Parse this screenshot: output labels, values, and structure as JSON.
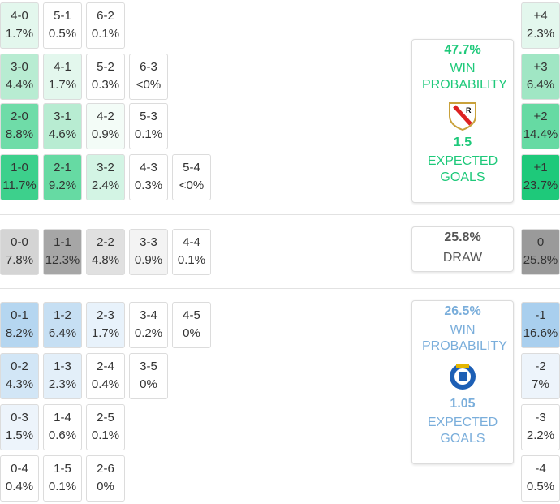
{
  "sections": [
    {
      "rows": [
        [
          {
            "score": "4-0",
            "pct": "1.7%",
            "color": "#e3f7ed"
          },
          {
            "score": "5-1",
            "pct": "0.5%",
            "color": "#ffffff"
          },
          {
            "score": "6-2",
            "pct": "0.1%",
            "color": "#ffffff"
          }
        ],
        [
          {
            "score": "3-0",
            "pct": "4.4%",
            "color": "#b8ecd2"
          },
          {
            "score": "4-1",
            "pct": "1.7%",
            "color": "#e3f7ed"
          },
          {
            "score": "5-2",
            "pct": "0.3%",
            "color": "#ffffff"
          },
          {
            "score": "6-3",
            "pct": "<0%",
            "color": "#ffffff"
          }
        ],
        [
          {
            "score": "2-0",
            "pct": "8.8%",
            "color": "#6fdca8"
          },
          {
            "score": "3-1",
            "pct": "4.6%",
            "color": "#b8ecd2"
          },
          {
            "score": "4-2",
            "pct": "0.9%",
            "color": "#f3fcf7"
          },
          {
            "score": "5-3",
            "pct": "0.1%",
            "color": "#ffffff"
          }
        ],
        [
          {
            "score": "1-0",
            "pct": "11.7%",
            "color": "#3dd08c"
          },
          {
            "score": "2-1",
            "pct": "9.2%",
            "color": "#66daa3"
          },
          {
            "score": "3-2",
            "pct": "2.4%",
            "color": "#d3f4e4"
          },
          {
            "score": "4-3",
            "pct": "0.3%",
            "color": "#ffffff"
          },
          {
            "score": "5-4",
            "pct": "<0%",
            "color": "#ffffff"
          }
        ]
      ],
      "margins": [
        {
          "diff": "+4",
          "pct": "2.3%",
          "color": "#e3f7ed"
        },
        {
          "diff": "+3",
          "pct": "6.4%",
          "color": "#a0e6c4"
        },
        {
          "diff": "+2",
          "pct": "14.4%",
          "color": "#66daa3"
        },
        {
          "diff": "+1",
          "pct": "23.7%",
          "color": "#1ec97a"
        }
      ],
      "summary": {
        "pct": "47.7%",
        "label": "WIN PROBABILITY",
        "xg": "1.5",
        "xg_label": "EXPECTED GOALS",
        "color": "#1ec97a"
      }
    },
    {
      "rows": [
        [
          {
            "score": "0-0",
            "pct": "7.8%",
            "color": "#d4d4d4"
          },
          {
            "score": "1-1",
            "pct": "12.3%",
            "color": "#a6a6a6"
          },
          {
            "score": "2-2",
            "pct": "4.8%",
            "color": "#e0e0e0"
          },
          {
            "score": "3-3",
            "pct": "0.9%",
            "color": "#f3f3f3"
          },
          {
            "score": "4-4",
            "pct": "0.1%",
            "color": "#ffffff"
          }
        ]
      ],
      "margins": [
        {
          "diff": "0",
          "pct": "25.8%",
          "color": "#9a9a9a"
        }
      ],
      "summary": {
        "pct": "25.8%",
        "label": "DRAW",
        "color": "#555555"
      }
    },
    {
      "rows": [
        [
          {
            "score": "0-1",
            "pct": "8.2%",
            "color": "#b5d6f0"
          },
          {
            "score": "1-2",
            "pct": "6.4%",
            "color": "#c6dff3"
          },
          {
            "score": "2-3",
            "pct": "1.7%",
            "color": "#e8f2fb"
          },
          {
            "score": "3-4",
            "pct": "0.2%",
            "color": "#ffffff"
          },
          {
            "score": "4-5",
            "pct": "0%",
            "color": "#ffffff"
          }
        ],
        [
          {
            "score": "0-2",
            "pct": "4.3%",
            "color": "#d2e6f6"
          },
          {
            "score": "1-3",
            "pct": "2.3%",
            "color": "#e3eff9"
          },
          {
            "score": "2-4",
            "pct": "0.4%",
            "color": "#ffffff"
          },
          {
            "score": "3-5",
            "pct": "0%",
            "color": "#ffffff"
          }
        ],
        [
          {
            "score": "0-3",
            "pct": "1.5%",
            "color": "#edf4fb"
          },
          {
            "score": "1-4",
            "pct": "0.6%",
            "color": "#ffffff"
          },
          {
            "score": "2-5",
            "pct": "0.1%",
            "color": "#ffffff"
          }
        ],
        [
          {
            "score": "0-4",
            "pct": "0.4%",
            "color": "#ffffff"
          },
          {
            "score": "1-5",
            "pct": "0.1%",
            "color": "#ffffff"
          },
          {
            "score": "2-6",
            "pct": "0%",
            "color": "#ffffff"
          }
        ]
      ],
      "margins": [
        {
          "diff": "-1",
          "pct": "16.6%",
          "color": "#a9cfee"
        },
        {
          "diff": "-2",
          "pct": "7%",
          "color": "#edf4fb"
        },
        {
          "diff": "-3",
          "pct": "2.2%",
          "color": "#ffffff"
        },
        {
          "diff": "-4",
          "pct": "0.5%",
          "color": "#ffffff"
        }
      ],
      "summary": {
        "pct": "26.5%",
        "label": "WIN PROBABILITY",
        "xg": "1.05",
        "xg_label": "EXPECTED GOALS",
        "color": "#7aaedb"
      }
    }
  ]
}
